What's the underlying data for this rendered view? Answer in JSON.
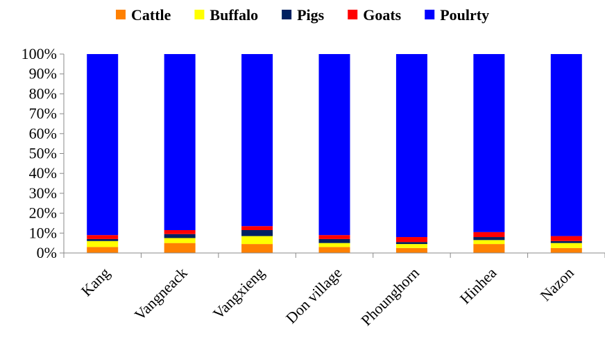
{
  "chart_data": {
    "type": "bar",
    "stacked": true,
    "percent_stacked": true,
    "title": "",
    "xlabel": "",
    "ylabel": "",
    "ylim": [
      0,
      100
    ],
    "yticks": [
      "0%",
      "10%",
      "20%",
      "30%",
      "40%",
      "50%",
      "60%",
      "70%",
      "80%",
      "90%",
      "100%"
    ],
    "legend_position": "top",
    "categories": [
      "Kang",
      "Vangneack",
      "Vangxieng",
      "Don village",
      "Phounghorn",
      "Hinhea",
      "Nazon"
    ],
    "series": [
      {
        "name": "Cattle",
        "color": "#FF8000",
        "values": [
          3,
          5,
          4.5,
          3,
          2.5,
          4.5,
          2.5
        ]
      },
      {
        "name": "Buffalo",
        "color": "#FFFF00",
        "values": [
          3,
          2.5,
          4,
          2,
          2,
          2,
          2.5
        ]
      },
      {
        "name": "Pigs",
        "color": "#002060",
        "values": [
          1,
          2,
          3,
          2,
          1,
          1.5,
          1
        ]
      },
      {
        "name": "Goats",
        "color": "#FF0000",
        "values": [
          2,
          2,
          2,
          2,
          2.5,
          2.5,
          2.5
        ]
      },
      {
        "name": "Poulrty",
        "color": "#0000FF",
        "values": [
          91,
          88.5,
          86.5,
          91,
          92,
          89.5,
          91.5
        ]
      }
    ]
  }
}
